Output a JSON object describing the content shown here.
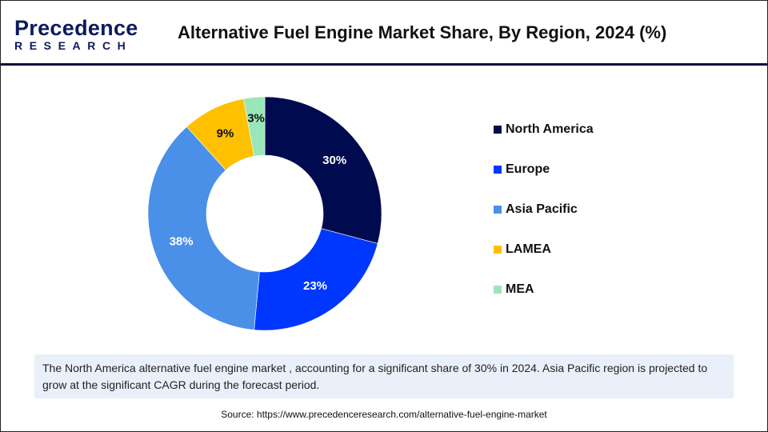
{
  "header": {
    "logo_top": "Precedence",
    "logo_bottom": "RESEARCH",
    "title": "Alternative Fuel Engine Market Share, By Region, 2024 (%)"
  },
  "chart_data": {
    "type": "pie",
    "variant": "donut",
    "title": "Alternative Fuel Engine Market Share, By Region, 2024 (%)",
    "categories": [
      "North America",
      "Europe",
      "Asia Pacific",
      "LAMEA",
      "MEA"
    ],
    "values": [
      30,
      23,
      38,
      9,
      3
    ],
    "labels": [
      "30%",
      "23%",
      "38%",
      "9%",
      "3%"
    ],
    "colors": [
      "#000b4f",
      "#0037ff",
      "#4a90e8",
      "#ffc000",
      "#99e6b8"
    ],
    "label_colors": [
      "#ffffff",
      "#ffffff",
      "#ffffff",
      "#111111",
      "#111111"
    ],
    "legend_position": "right"
  },
  "note": "The North America alternative fuel engine market , accounting for a significant share of 30% in 2024. Asia Pacific region is projected to grow at the significant CAGR during the forecast period.",
  "source": "Source: https://www.precedenceresearch.com/alternative-fuel-engine-market"
}
